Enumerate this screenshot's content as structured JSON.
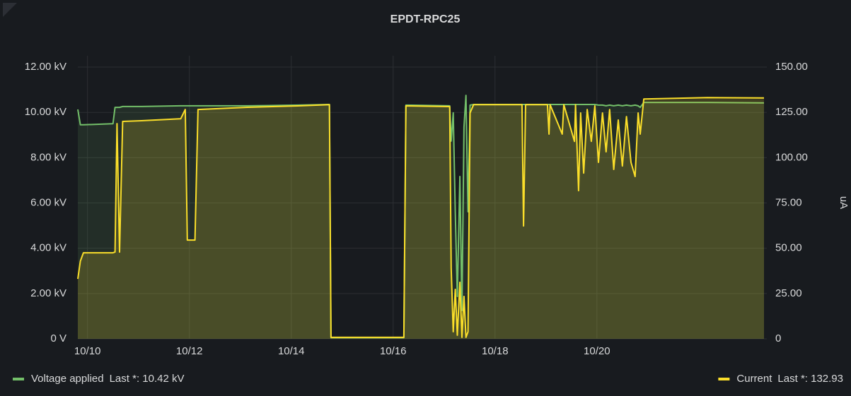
{
  "chart_data": {
    "type": "line",
    "title": "EPDT-RPC25",
    "y2label": "uA",
    "x": [
      9.81,
      9.86,
      9.92,
      10.5,
      10.54,
      10.58,
      10.63,
      10.69,
      11.06,
      11.83,
      11.92,
      11.96,
      12.11,
      12.17,
      13.14,
      14.13,
      14.75,
      14.78,
      16.21,
      16.25,
      17.11,
      17.14,
      17.18,
      17.22,
      17.26,
      17.31,
      17.35,
      17.39,
      17.43,
      17.47,
      17.51,
      17.58,
      18.53,
      18.56,
      18.6,
      19.03,
      19.06,
      19.08,
      19.32,
      19.35,
      19.56,
      19.58,
      19.64,
      19.68,
      19.74,
      19.81,
      19.89,
      19.96,
      20.03,
      20.11,
      20.18,
      20.25,
      20.33,
      20.42,
      20.5,
      20.58,
      20.67,
      20.75,
      20.81,
      20.85,
      20.92,
      22.17,
      23.28
    ],
    "series": [
      {
        "name": "Voltage applied",
        "last": "Last *: 10.42 kV",
        "color": "#73bf69",
        "fill": "rgba(115,191,105,0.12)",
        "values": [
          10.13,
          9.45,
          9.45,
          9.5,
          10.22,
          10.22,
          10.22,
          10.26,
          10.26,
          10.29,
          10.29,
          10.29,
          10.29,
          10.29,
          10.29,
          10.32,
          10.35,
          0.05,
          0.05,
          10.32,
          10.29,
          8.73,
          9.98,
          5.61,
          1.87,
          7.17,
          1.25,
          9.35,
          10.75,
          5.61,
          10.32,
          10.35,
          10.35,
          10.35,
          10.35,
          10.35,
          10.35,
          10.35,
          10.35,
          10.35,
          10.35,
          10.35,
          10.35,
          10.35,
          10.35,
          10.35,
          10.35,
          10.35,
          10.32,
          10.32,
          10.29,
          10.32,
          10.29,
          10.32,
          10.29,
          10.32,
          10.29,
          10.32,
          10.29,
          10.22,
          10.44,
          10.44,
          10.42
        ]
      },
      {
        "name": "Current",
        "last": "Last *: 132.93",
        "color": "#fade2a",
        "fill": "rgba(250,222,42,0.18)",
        "axis": "y2",
        "values": [
          33.1,
          42.9,
          47.5,
          47.5,
          47.9,
          118.8,
          47.9,
          120,
          120.4,
          121.5,
          126.6,
          54.5,
          54.5,
          126.6,
          127.8,
          128.6,
          129.3,
          0.8,
          0.8,
          128.6,
          128.2,
          39,
          3.9,
          27.3,
          2,
          31.2,
          0.8,
          23.4,
          0.8,
          3.9,
          124.7,
          129.3,
          129.3,
          62.3,
          129.3,
          129.3,
          113,
          129.3,
          113,
          129.3,
          109,
          129.3,
          81.8,
          124.7,
          91.5,
          126.6,
          109,
          128.6,
          97.4,
          124.7,
          103.2,
          126.6,
          93.5,
          120.8,
          95.4,
          122.7,
          97.4,
          89.6,
          124.7,
          113,
          132.4,
          133.2,
          132.93
        ]
      }
    ],
    "xlim": [
      9.81,
      23.28
    ],
    "xticks": [
      {
        "value": 10,
        "label": "10/10"
      },
      {
        "value": 12,
        "label": "10/12"
      },
      {
        "value": 14,
        "label": "10/14"
      },
      {
        "value": 16,
        "label": "10/16"
      },
      {
        "value": 18,
        "label": "10/18"
      },
      {
        "value": 20,
        "label": "10/20"
      }
    ],
    "ylim": [
      0,
      12.5
    ],
    "yticks": [
      {
        "value": 0,
        "label": "0 V"
      },
      {
        "value": 2,
        "label": "2.00 kV"
      },
      {
        "value": 4,
        "label": "4.00 kV"
      },
      {
        "value": 6,
        "label": "6.00 kV"
      },
      {
        "value": 8,
        "label": "8.00 kV"
      },
      {
        "value": 10,
        "label": "10.00 kV"
      },
      {
        "value": 12,
        "label": "12.00 kV"
      }
    ],
    "y2lim": [
      0,
      156.25
    ],
    "y2ticks": [
      0,
      {
        "value": 25,
        "label": "25.00"
      },
      {
        "value": 50,
        "label": "50.00"
      },
      {
        "value": 75,
        "label": "75.00"
      },
      {
        "value": 100,
        "label": "100.00"
      },
      {
        "value": 125,
        "label": "125.00"
      },
      {
        "value": 150,
        "label": "150.00"
      }
    ],
    "grid": true
  }
}
